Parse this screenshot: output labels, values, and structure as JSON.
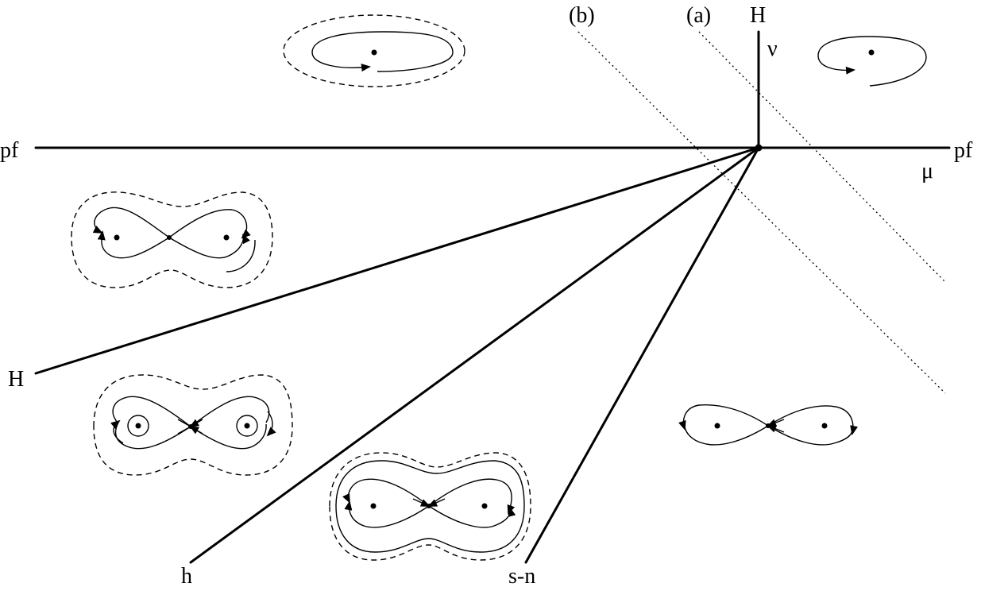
{
  "labels": {
    "pf_left": "pf",
    "pf_right": "pf",
    "mu": "μ",
    "nu": "ν",
    "H_top": "H",
    "H_left": "H",
    "h": "h",
    "sn": "s-n",
    "a": "(a)",
    "b": "(b)"
  }
}
